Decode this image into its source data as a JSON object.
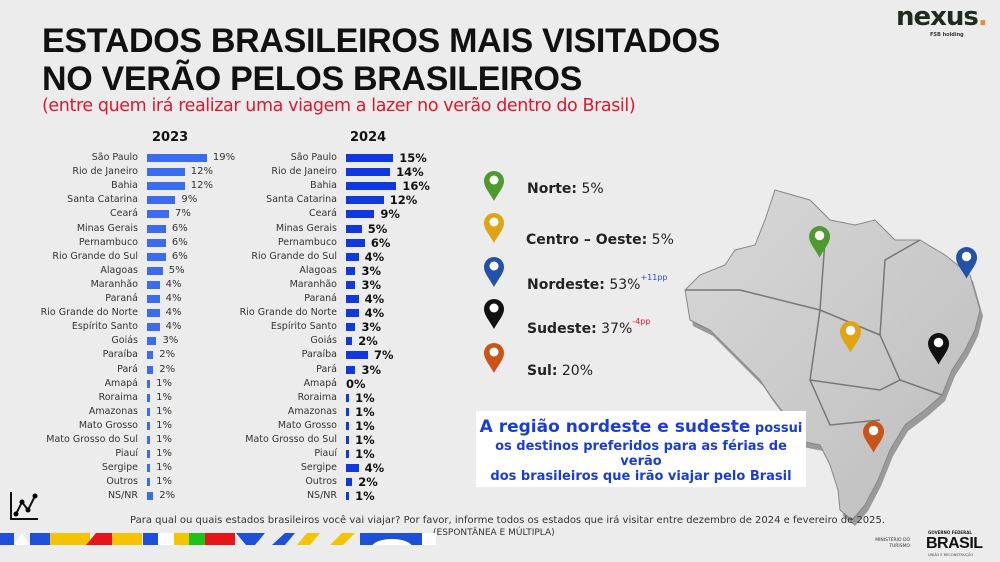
{
  "header": {
    "title_line1": "ESTADOS BRASILEIROS MAIS VISITADOS",
    "title_line2": "NO VERÃO PELOS BRASILEIROS",
    "subtitle": "(entre quem irá realizar uma viagem a lazer no verão dentro do Brasil)"
  },
  "logo": {
    "text": "nexus",
    "dot": ".",
    "sub": "FSB holding"
  },
  "chart_data": [
    {
      "type": "bar",
      "orientation": "horizontal",
      "title": "2023",
      "color": "#3b6cf0",
      "categories": [
        "São Paulo",
        "Rio de Janeiro",
        "Bahia",
        "Santa Catarina",
        "Ceará",
        "Minas Gerais",
        "Pernambuco",
        "Rio Grande do Sul",
        "Alagoas",
        "Maranhão",
        "Paraná",
        "Rio Grande do Norte",
        "Espírito Santo",
        "Goiás",
        "Paraíba",
        "Pará",
        "Amapá",
        "Roraima",
        "Amazonas",
        "Mato Grosso",
        "Mato Grosso do Sul",
        "Piauí",
        "Sergipe",
        "Outros",
        "NS/NR"
      ],
      "values": [
        19,
        12,
        12,
        9,
        7,
        6,
        6,
        6,
        5,
        4,
        4,
        4,
        4,
        3,
        2,
        2,
        1,
        1,
        1,
        1,
        1,
        1,
        1,
        1,
        2
      ],
      "unit": "%"
    },
    {
      "type": "bar",
      "orientation": "horizontal",
      "title": "2024",
      "color": "#1037e0",
      "categories": [
        "São Paulo",
        "Rio de Janeiro",
        "Bahia",
        "Santa Catarina",
        "Ceará",
        "Minas Gerais",
        "Pernambuco",
        "Rio Grande do Sul",
        "Alagoas",
        "Maranhão",
        "Paraná",
        "Rio Grande do Norte",
        "Espírito Santo",
        "Goiás",
        "Paraíba",
        "Pará",
        "Amapá",
        "Roraima",
        "Amazonas",
        "Mato Grosso",
        "Mato Grosso do Sul",
        "Piauí",
        "Sergipe",
        "Outros",
        "NS/NR"
      ],
      "values": [
        15,
        14,
        16,
        12,
        9,
        5,
        6,
        4,
        3,
        3,
        4,
        4,
        3,
        2,
        7,
        3,
        0,
        1,
        1,
        1,
        1,
        1,
        4,
        2,
        1
      ],
      "unit": "%"
    }
  ],
  "regions": [
    {
      "name": "Norte:",
      "value": "5%",
      "delta": "",
      "color": "#4e9a2e",
      "delta_color": ""
    },
    {
      "name": "Centro – Oeste:",
      "value": "5%",
      "delta": "",
      "color": "#e0a412",
      "delta_color": ""
    },
    {
      "name": "Nordeste:",
      "value": "53%",
      "delta": "+11pp",
      "color": "#2451a8",
      "delta_color": "#2b4bd8"
    },
    {
      "name": "Sudeste:",
      "value": "37%",
      "delta": "-4pp",
      "color": "#111111",
      "delta_color": "#e0182d"
    },
    {
      "name": "Sul:",
      "value": "20%",
      "delta": "",
      "color": "#c9541a",
      "delta_color": ""
    }
  ],
  "callout": {
    "strong": "A região nordeste e sudeste",
    "rest1": " possui",
    "line2": "os destinos preferidos para as férias de verão",
    "line3": "dos brasileiros que irão viajar pelo Brasil"
  },
  "footer": {
    "question": "Para qual ou quais estados brasileiros você vai viajar? Por favor, informe todos os estados que irá visitar entre dezembro de 2024 e fevereiro de 2025.",
    "type": "(ESPONTÂNEA E MÚLTIPLA)",
    "ministry": "MINISTÉRIO DO TURISMO",
    "gov_top": "GOVERNO FEDERAL",
    "gov": "BRASIL",
    "gov_sub": "UNIÃO E RECONSTRUÇÃO"
  }
}
